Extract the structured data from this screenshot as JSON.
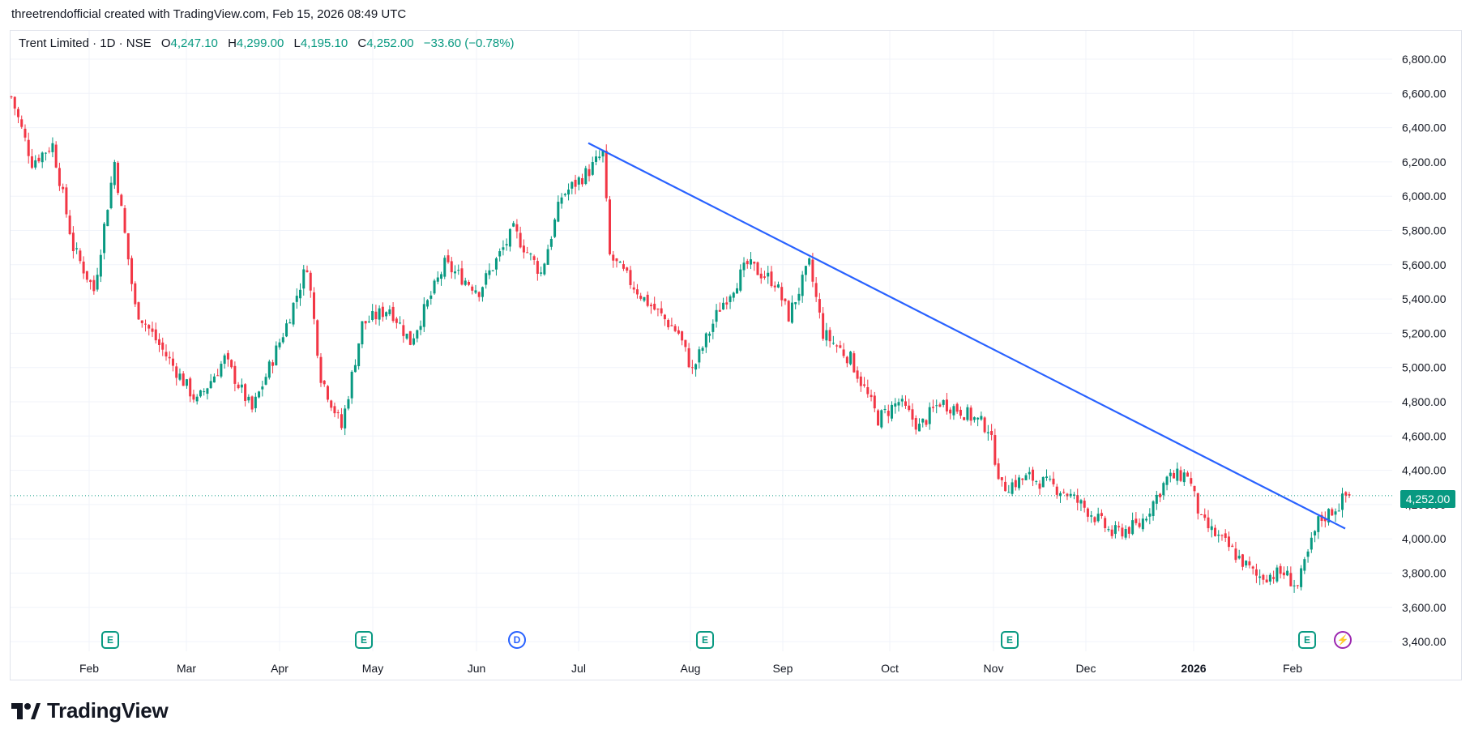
{
  "header": {
    "attribution": "threetrendofficial created with TradingView.com, Feb 15, 2026 08:49 UTC"
  },
  "legend": {
    "symbol": "Trent Limited · 1D · NSE",
    "open_label": "O",
    "open": "4,247.10",
    "high_label": "H",
    "high": "4,299.00",
    "low_label": "L",
    "low": "4,195.10",
    "close_label": "C",
    "close": "4,252.00",
    "change": "−33.60 (−0.78%)"
  },
  "last_price_tag": "4,252.00",
  "brand": {
    "name": "TradingView"
  },
  "markers": [
    {
      "type": "E",
      "near": "Feb"
    },
    {
      "type": "E",
      "near": "May"
    },
    {
      "type": "D",
      "near": "Jun"
    },
    {
      "type": "E",
      "near": "Aug"
    },
    {
      "type": "E",
      "near": "Nov"
    },
    {
      "type": "E",
      "near": "Feb 2026"
    },
    {
      "type": "flash",
      "near": "Feb 2026"
    }
  ],
  "colors": {
    "up": "#089981",
    "down": "#f23645",
    "trendline": "#2962ff",
    "grid": "#f0f3fa"
  },
  "chart_data": {
    "type": "candlestick",
    "symbol": "Trent Limited",
    "interval": "1D",
    "exchange": "NSE",
    "y_ticks": [
      "6,800.00",
      "6,600.00",
      "6,400.00",
      "6,200.00",
      "6,000.00",
      "5,800.00",
      "5,600.00",
      "5,400.00",
      "5,200.00",
      "5,000.00",
      "4,800.00",
      "4,600.00",
      "4,400.00",
      "4,200.00",
      "4,000.00",
      "3,800.00",
      "3,600.00",
      "3,400.00"
    ],
    "y_range": [
      3350,
      6870
    ],
    "x_ticks": [
      "Feb",
      "Mar",
      "Apr",
      "May",
      "Jun",
      "Jul",
      "Aug",
      "Sep",
      "Oct",
      "Nov",
      "Dec",
      "2026",
      "Feb"
    ],
    "last_close": 4252.0,
    "grid": true,
    "price_waypoints": [
      [
        0,
        6580
      ],
      [
        6,
        6200
      ],
      [
        12,
        6300
      ],
      [
        18,
        5700
      ],
      [
        24,
        5450
      ],
      [
        30,
        6200
      ],
      [
        36,
        5350
      ],
      [
        44,
        5100
      ],
      [
        54,
        4800
      ],
      [
        62,
        5050
      ],
      [
        70,
        4750
      ],
      [
        80,
        5250
      ],
      [
        86,
        5600
      ],
      [
        90,
        4950
      ],
      [
        96,
        4650
      ],
      [
        102,
        5250
      ],
      [
        110,
        5350
      ],
      [
        116,
        5150
      ],
      [
        126,
        5600
      ],
      [
        136,
        5450
      ],
      [
        146,
        5800
      ],
      [
        154,
        5550
      ],
      [
        160,
        6000
      ],
      [
        168,
        6150
      ],
      [
        172,
        6250
      ],
      [
        174,
        5650
      ],
      [
        184,
        5400
      ],
      [
        194,
        5200
      ],
      [
        198,
        4980
      ],
      [
        206,
        5350
      ],
      [
        214,
        5600
      ],
      [
        222,
        5500
      ],
      [
        226,
        5300
      ],
      [
        232,
        5600
      ],
      [
        236,
        5200
      ],
      [
        244,
        5050
      ],
      [
        252,
        4700
      ],
      [
        258,
        4800
      ],
      [
        264,
        4650
      ],
      [
        270,
        4800
      ],
      [
        276,
        4750
      ],
      [
        284,
        4650
      ],
      [
        288,
        4300
      ],
      [
        296,
        4360
      ],
      [
        306,
        4280
      ],
      [
        314,
        4150
      ],
      [
        320,
        4030
      ],
      [
        328,
        4080
      ],
      [
        336,
        4350
      ],
      [
        342,
        4380
      ],
      [
        346,
        4100
      ],
      [
        354,
        3950
      ],
      [
        362,
        3780
      ],
      [
        370,
        3800
      ],
      [
        374,
        3720
      ],
      [
        380,
        4100
      ],
      [
        386,
        4200
      ],
      [
        388,
        4252
      ]
    ],
    "trendline": {
      "start": {
        "x": "Jul",
        "y": 6310
      },
      "end": {
        "x": "Feb 2026",
        "y": 4060
      }
    }
  }
}
